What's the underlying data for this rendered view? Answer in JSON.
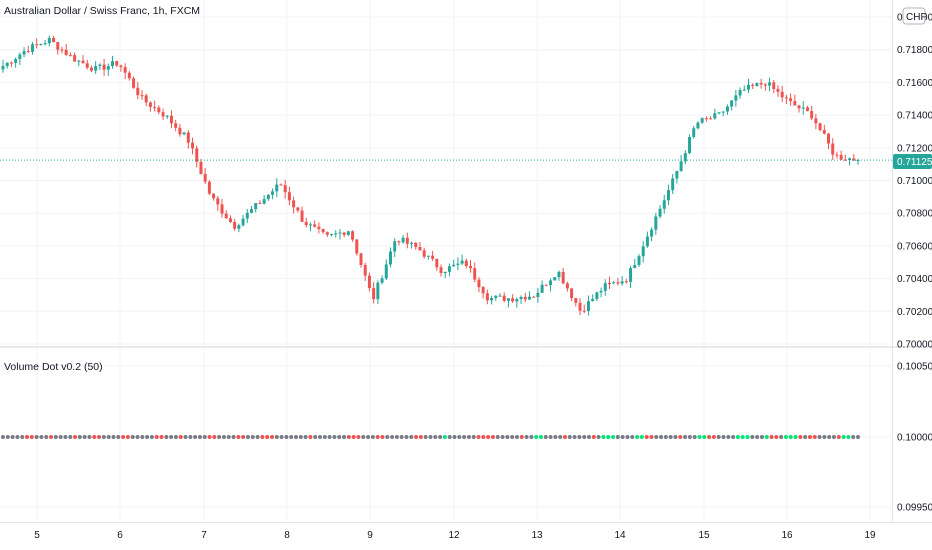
{
  "header": {
    "symbol_title": "Australian Dollar / Swiss Franc, 1h, FXCM",
    "currency_badge": "CHF"
  },
  "indicator": {
    "label": "Volume Dot v0.2 (50)"
  },
  "colors": {
    "up": "#26a69a",
    "down": "#ef5350",
    "last_price_bg": "#26a69a",
    "dot_gray": "#787b86",
    "dot_red": "#ef5350",
    "dot_green": "#00e676",
    "grid": "#f0f3fa"
  },
  "chart_data": [
    {
      "type": "candlestick",
      "title": "Australian Dollar / Swiss Franc, 1h, FXCM",
      "y_ticks": [
        "0.72000",
        "0.71800",
        "0.71600",
        "0.71400",
        "0.71200",
        "0.71000",
        "0.70800",
        "0.70600",
        "0.70400",
        "0.70200",
        "0.70000"
      ],
      "ylim": [
        0.7,
        0.72
      ],
      "last_price": "0.71125",
      "x_ticks": [
        "5",
        "6",
        "7",
        "8",
        "9",
        "12",
        "13",
        "14",
        "15",
        "16",
        "19"
      ],
      "close_path": [
        {
          "day": "5",
          "close": 0.717
        },
        {
          "day": "5",
          "close": 0.718
        },
        {
          "day": "5",
          "close": 0.7186
        },
        {
          "day": "6",
          "close": 0.7175
        },
        {
          "day": "6",
          "close": 0.7168
        },
        {
          "day": "6",
          "close": 0.7172
        },
        {
          "day": "6",
          "close": 0.715
        },
        {
          "day": "7",
          "close": 0.714
        },
        {
          "day": "7",
          "close": 0.7125
        },
        {
          "day": "7",
          "close": 0.709
        },
        {
          "day": "8",
          "close": 0.7072
        },
        {
          "day": "8",
          "close": 0.7085
        },
        {
          "day": "8",
          "close": 0.7098
        },
        {
          "day": "8",
          "close": 0.7075
        },
        {
          "day": "9",
          "close": 0.7065
        },
        {
          "day": "9",
          "close": 0.707
        },
        {
          "day": "9",
          "close": 0.7027
        },
        {
          "day": "9",
          "close": 0.7065
        },
        {
          "day": "12",
          "close": 0.7058
        },
        {
          "day": "12",
          "close": 0.7045
        },
        {
          "day": "12",
          "close": 0.705
        },
        {
          "day": "12",
          "close": 0.7028
        },
        {
          "day": "13",
          "close": 0.7028
        },
        {
          "day": "13",
          "close": 0.703
        },
        {
          "day": "13",
          "close": 0.7045
        },
        {
          "day": "13",
          "close": 0.702
        },
        {
          "day": "14",
          "close": 0.7035
        },
        {
          "day": "14",
          "close": 0.704
        },
        {
          "day": "14",
          "close": 0.707
        },
        {
          "day": "14",
          "close": 0.71
        },
        {
          "day": "15",
          "close": 0.7135
        },
        {
          "day": "15",
          "close": 0.714
        },
        {
          "day": "15",
          "close": 0.7155
        },
        {
          "day": "15",
          "close": 0.716
        },
        {
          "day": "16",
          "close": 0.7148
        },
        {
          "day": "16",
          "close": 0.714
        },
        {
          "day": "16",
          "close": 0.7115
        },
        {
          "day": "16",
          "close": 0.71125
        }
      ]
    },
    {
      "type": "scatter",
      "title": "Volume Dot v0.2 (50)",
      "y_ticks": [
        "0.10050",
        "0.10000",
        "0.09950"
      ],
      "ylim": [
        0.0994,
        0.1006
      ],
      "dot_value": 0.1,
      "dot_colors": "gggggrrgggrggggrgggrrggggrrgggggrrgggrgggggrrggggrrgggrrrgggggggrgggggggrrrgggrrggggggrrggggGggggggrrrrgggggrggGGggggrgggggrgGGGggggGGrrgggggrgggGGrrggggGGGgggGrrgGGGrgrrggggrGGgg",
      "dot_color_key": {
        "g": "gray",
        "r": "red",
        "G": "green"
      }
    }
  ]
}
